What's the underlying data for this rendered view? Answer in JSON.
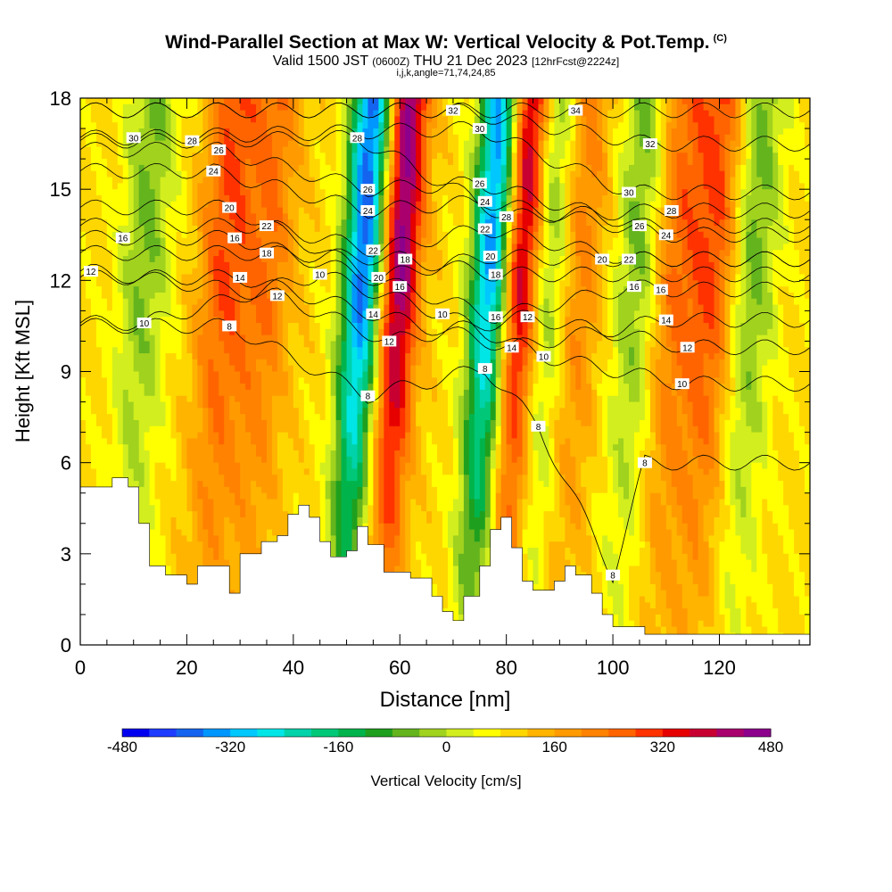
{
  "title": {
    "main": "Wind-Parallel Section at Max W: Vertical Velocity & Pot.Temp.",
    "tag": "(C)",
    "valid_prefix": "Valid 1500 JST",
    "valid_utc": "(0600Z)",
    "valid_date": "THU 21 Dec 2023",
    "forecast": "[12hrFcst@2224z]",
    "ijk": "i,j,k,angle=71,74,24,85"
  },
  "chart_data": {
    "type": "heatmap",
    "xlabel": "Distance [nm]",
    "ylabel": "Height [Kft MSL]",
    "xlim": [
      0,
      137
    ],
    "ylim": [
      0,
      18
    ],
    "x_ticks": [
      "0",
      "20",
      "40",
      "60",
      "80",
      "100",
      "120"
    ],
    "y_ticks": [
      "0",
      "3",
      "6",
      "9",
      "12",
      "15",
      "18"
    ],
    "colorbar": {
      "label": "Vertical Velocity [cm/s]",
      "ticks": [
        "-480",
        "-320",
        "-160",
        "0",
        "160",
        "320",
        "480"
      ],
      "min": -480,
      "max": 480,
      "step": 40,
      "colors": [
        "#0000f0",
        "#1e3cff",
        "#1464f0",
        "#0096ff",
        "#00c8ff",
        "#00e6e6",
        "#00d2aa",
        "#00c878",
        "#00b44b",
        "#1ea01e",
        "#64b41e",
        "#a0d21e",
        "#d2ee1e",
        "#ffff00",
        "#ffd700",
        "#ffb400",
        "#ff9b00",
        "#ff8200",
        "#ff6400",
        "#ff3200",
        "#e60000",
        "#c80032",
        "#aa006e",
        "#8c008c",
        "#6e00aa"
      ]
    },
    "updrafts": [
      {
        "x": 26,
        "peak_cm_s": 180
      },
      {
        "x": 34,
        "peak_cm_s": 140
      },
      {
        "x": 59,
        "peak_cm_s": 360
      },
      {
        "x": 82,
        "peak_cm_s": 360
      },
      {
        "x": 92,
        "peak_cm_s": 160
      },
      {
        "x": 110,
        "peak_cm_s": 160
      },
      {
        "x": 118,
        "peak_cm_s": 200
      }
    ],
    "downdrafts": [
      {
        "x": 11,
        "peak_cm_s": -140
      },
      {
        "x": 52,
        "peak_cm_s": -480
      },
      {
        "x": 76,
        "peak_cm_s": -440
      },
      {
        "x": 87,
        "peak_cm_s": -200
      },
      {
        "x": 104,
        "peak_cm_s": -160
      },
      {
        "x": 125,
        "peak_cm_s": -160
      }
    ],
    "terrain_height_kft": [
      [
        0,
        5.2
      ],
      [
        3,
        5.2
      ],
      [
        6,
        5.5
      ],
      [
        9,
        5.2
      ],
      [
        11,
        4
      ],
      [
        13,
        2.6
      ],
      [
        16,
        2.3
      ],
      [
        20,
        2.0
      ],
      [
        22,
        2.6
      ],
      [
        26,
        2.6
      ],
      [
        28,
        1.7
      ],
      [
        30,
        3.0
      ],
      [
        34,
        3.4
      ],
      [
        37,
        3.6
      ],
      [
        39,
        4.3
      ],
      [
        41,
        4.6
      ],
      [
        43,
        4.2
      ],
      [
        45,
        3.4
      ],
      [
        47,
        2.9
      ],
      [
        50,
        3.1
      ],
      [
        52,
        3.9
      ],
      [
        54,
        3.3
      ],
      [
        57,
        2.4
      ],
      [
        62,
        2.2
      ],
      [
        66,
        1.6
      ],
      [
        68,
        1.1
      ],
      [
        70,
        0.8
      ],
      [
        72,
        1.6
      ],
      [
        75,
        2.6
      ],
      [
        77,
        3.8
      ],
      [
        79,
        4.2
      ],
      [
        81,
        3.2
      ],
      [
        83,
        2.1
      ],
      [
        85,
        1.8
      ],
      [
        87,
        1.8
      ],
      [
        89,
        2.1
      ],
      [
        91,
        2.6
      ],
      [
        93,
        2.3
      ],
      [
        96,
        1.7
      ],
      [
        98,
        1.0
      ],
      [
        100,
        0.6
      ],
      [
        104,
        0.6
      ],
      [
        106,
        0.35
      ],
      [
        137,
        0.35
      ]
    ],
    "isentropes": [
      {
        "label": "8",
        "label_at": [
          [
            28,
            10.5
          ],
          [
            54,
            8.2
          ],
          [
            76,
            9.1
          ],
          [
            86,
            7.2
          ],
          [
            106,
            6.0
          ],
          [
            100,
            2.3
          ]
        ]
      },
      {
        "label": "10",
        "label_at": [
          [
            12,
            10.6
          ],
          [
            45,
            12.2
          ],
          [
            68,
            10.9
          ],
          [
            87,
            9.5
          ],
          [
            113,
            8.6
          ]
        ]
      },
      {
        "label": "12",
        "label_at": [
          [
            2,
            12.3
          ],
          [
            37,
            11.5
          ],
          [
            58,
            10.0
          ],
          [
            84,
            10.8
          ],
          [
            114,
            9.8
          ]
        ]
      },
      {
        "label": "14",
        "label_at": [
          [
            30,
            12.1
          ],
          [
            55,
            10.9
          ],
          [
            81,
            9.8
          ],
          [
            110,
            10.7
          ]
        ]
      },
      {
        "label": "16",
        "label_at": [
          [
            8,
            13.4
          ],
          [
            29,
            13.4
          ],
          [
            60,
            11.8
          ],
          [
            78,
            10.8
          ],
          [
            104,
            11.8
          ],
          [
            109,
            11.7
          ]
        ]
      },
      {
        "label": "18",
        "label_at": [
          [
            35,
            12.9
          ],
          [
            61,
            12.7
          ],
          [
            78,
            12.2
          ]
        ]
      },
      {
        "label": "20",
        "label_at": [
          [
            28,
            14.4
          ],
          [
            56,
            12.1
          ],
          [
            77,
            12.8
          ],
          [
            98,
            12.7
          ]
        ]
      },
      {
        "label": "22",
        "label_at": [
          [
            35,
            13.8
          ],
          [
            55,
            13.0
          ],
          [
            76,
            13.7
          ],
          [
            103,
            12.7
          ]
        ]
      },
      {
        "label": "24",
        "label_at": [
          [
            25,
            15.6
          ],
          [
            54,
            14.3
          ],
          [
            76,
            14.6
          ],
          [
            110,
            13.5
          ]
        ]
      },
      {
        "label": "26",
        "label_at": [
          [
            26,
            16.3
          ],
          [
            54,
            15.0
          ],
          [
            75,
            15.2
          ],
          [
            105,
            13.8
          ]
        ]
      },
      {
        "label": "28",
        "label_at": [
          [
            21,
            16.6
          ],
          [
            52,
            16.7
          ],
          [
            80,
            14.1
          ],
          [
            111,
            14.3
          ]
        ]
      },
      {
        "label": "30",
        "label_at": [
          [
            10,
            16.7
          ],
          [
            75,
            17.0
          ],
          [
            103,
            14.9
          ]
        ]
      },
      {
        "label": "32",
        "label_at": [
          [
            70,
            17.6
          ],
          [
            107,
            16.5
          ]
        ]
      },
      {
        "label": "34",
        "label_at": [
          [
            93,
            17.6
          ]
        ]
      }
    ]
  }
}
